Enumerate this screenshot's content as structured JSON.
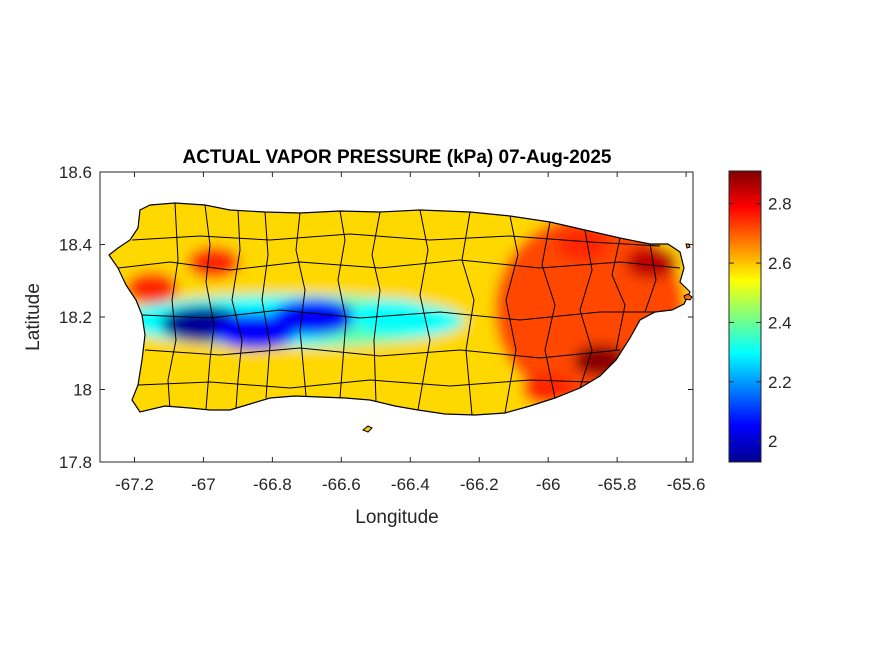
{
  "chart_data": {
    "type": "heatmap",
    "title": "ACTUAL VAPOR PRESSURE (kPa) 07-Aug-2025",
    "xlabel": "Longitude",
    "ylabel": "Latitude",
    "xlim": [
      -67.3,
      -65.58
    ],
    "ylim": [
      17.8,
      18.6
    ],
    "xticks": [
      -67.2,
      -67,
      -66.8,
      -66.6,
      -66.4,
      -66.2,
      -66,
      -65.8,
      -65.6
    ],
    "xtick_labels": [
      "-67.2",
      "-67",
      "-66.8",
      "-66.6",
      "-66.4",
      "-66.2",
      "-66",
      "-65.8",
      "-65.6"
    ],
    "yticks": [
      17.8,
      18,
      18.2,
      18.4,
      18.6
    ],
    "ytick_labels": [
      "17.8",
      "18",
      "18.2",
      "18.4",
      "18.6"
    ],
    "colorbar": {
      "colormap": "jet",
      "clim": [
        1.93,
        2.91
      ],
      "ticks": [
        2,
        2.2,
        2.4,
        2.6,
        2.8
      ],
      "tick_labels": [
        "2",
        "2.2",
        "2.4",
        "2.6",
        "2.8"
      ]
    },
    "field_features": [
      {
        "kind": "low",
        "lon": -67.0,
        "lat": 18.18,
        "value": 1.95
      },
      {
        "kind": "low",
        "lon": -66.85,
        "lat": 18.16,
        "value": 2.05
      },
      {
        "kind": "low",
        "lon": -66.68,
        "lat": 18.2,
        "value": 2.05
      },
      {
        "kind": "low",
        "lon": -66.45,
        "lat": 18.2,
        "value": 2.3
      },
      {
        "kind": "high",
        "lon": -65.85,
        "lat": 18.08,
        "value": 2.9
      },
      {
        "kind": "high",
        "lon": -65.7,
        "lat": 18.35,
        "value": 2.85
      },
      {
        "kind": "high",
        "lon": -65.9,
        "lat": 18.4,
        "value": 2.75
      },
      {
        "kind": "high",
        "lon": -66.0,
        "lat": 18.0,
        "value": 2.75
      },
      {
        "kind": "high",
        "lon": -67.15,
        "lat": 18.28,
        "value": 2.75
      },
      {
        "kind": "high",
        "lon": -66.97,
        "lat": 18.35,
        "value": 2.75
      }
    ],
    "background_value": 2.58,
    "grid": false
  }
}
